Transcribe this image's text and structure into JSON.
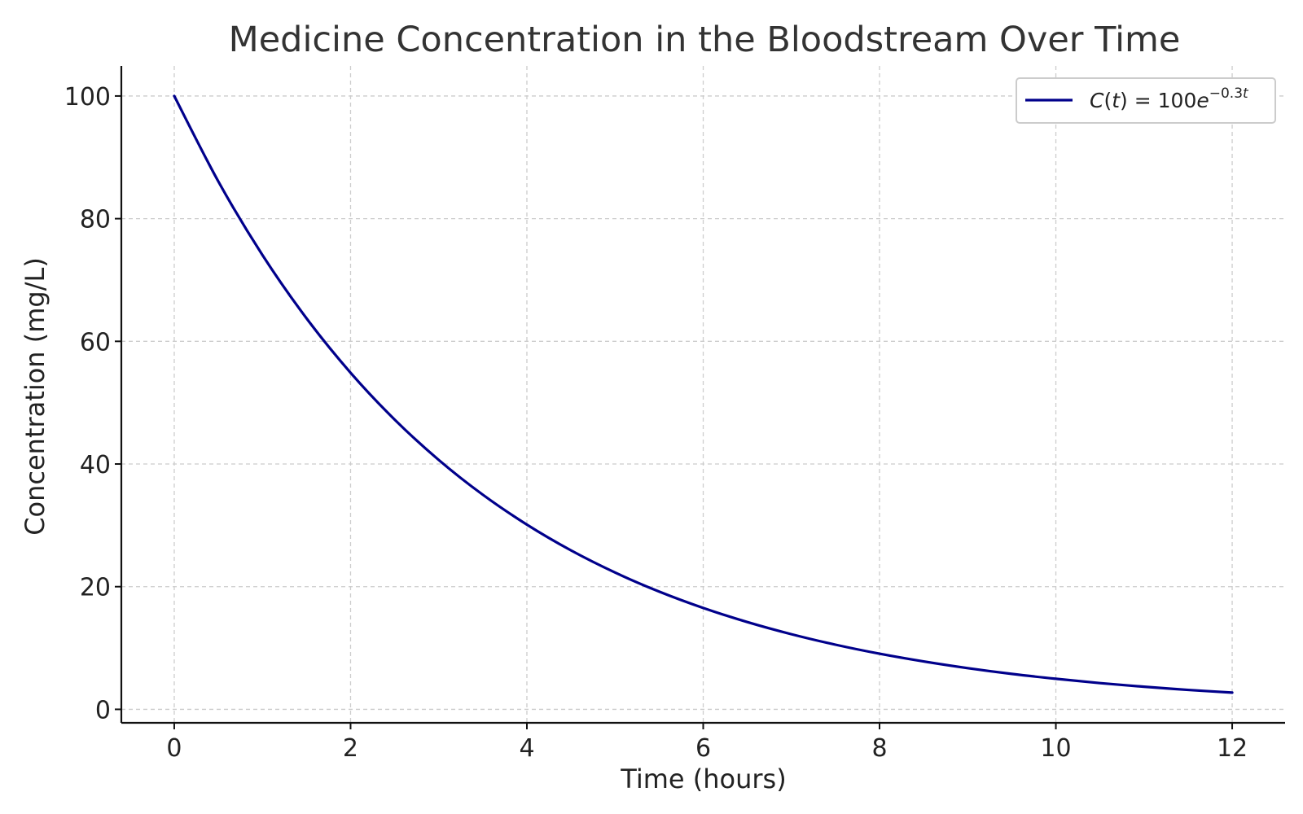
{
  "chart_data": {
    "type": "line",
    "title": "Medicine Concentration in the Bloodstream Over Time",
    "xlabel": "Time (hours)",
    "ylabel": "Concentration (mg/L)",
    "xlim": [
      -0.6,
      12.6
    ],
    "ylim": [
      -2.2,
      104.9
    ],
    "x_ticks": [
      0,
      2,
      4,
      6,
      8,
      10,
      12
    ],
    "y_ticks": [
      0,
      20,
      40,
      60,
      80,
      100
    ],
    "grid": true,
    "legend_position": "top-right",
    "series": [
      {
        "name": "C(t) = 100e^{-0.3t}",
        "color": "#00008b",
        "x": [
          0,
          0.5,
          1,
          1.5,
          2,
          2.5,
          3,
          3.5,
          4,
          4.5,
          5,
          5.5,
          6,
          6.5,
          7,
          7.5,
          8,
          8.5,
          9,
          9.5,
          10,
          10.5,
          11,
          11.5,
          12
        ],
        "y": [
          100,
          86.07,
          74.08,
          63.76,
          54.88,
          47.24,
          40.66,
          34.99,
          30.12,
          25.92,
          22.31,
          19.2,
          16.53,
          14.23,
          12.25,
          10.54,
          9.07,
          7.81,
          6.72,
          5.78,
          4.98,
          4.28,
          3.69,
          3.17,
          2.73
        ]
      }
    ],
    "legend": {
      "label_parts": {
        "c": "C",
        "open": "(",
        "t": "t",
        "close_eq": ") = 100",
        "e": "e",
        "exp": "−0.3",
        "exp_t": "t"
      }
    }
  }
}
